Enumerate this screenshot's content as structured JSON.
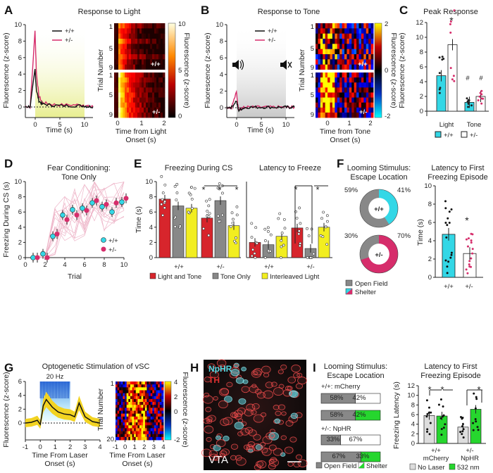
{
  "panels": {
    "A": {
      "label": "A",
      "title": "Response to Light",
      "ylabel": "Fluorescence (z-score)",
      "xlabel": "Time (s)",
      "yticks": [
        "10",
        "8",
        "6",
        "4",
        "2",
        "0"
      ],
      "xticks": [
        "0",
        "5",
        "10"
      ],
      "legend": [
        "+/+",
        "+/-"
      ],
      "heat_ylabel": "Trial Number",
      "heat_yticks": [
        "1",
        "5",
        "9"
      ],
      "heat_xticks": [
        "0",
        "1",
        "2"
      ],
      "heat_xlabel1": "Time from Light",
      "heat_xlabel2": "Onset (s)",
      "geno_top": "+/+",
      "geno_bot": "+/-",
      "cbar_ticks": [
        "10",
        "5",
        "0"
      ],
      "cbar_label": "Fluorescence (z-score)"
    },
    "B": {
      "label": "B",
      "title": "Response to Tone",
      "ylabel": "Fluorescence (z-score)",
      "xlabel": "Time (s)",
      "yticks": [
        "10",
        "8",
        "6",
        "4",
        "2",
        "0"
      ],
      "xticks": [
        "0",
        "5",
        "10"
      ],
      "legend": [
        "+/+",
        "+/-"
      ],
      "heat_ylabel": "Trial Number",
      "heat_yticks": [
        "1",
        "5",
        "9"
      ],
      "heat_xticks": [
        "0",
        "1",
        "2"
      ],
      "heat_xlabel1": "Time from Tone",
      "heat_xlabel2": "Onset (s)",
      "geno_top": "+/+",
      "geno_bot": "+/-",
      "cbar_ticks": [
        "2",
        "0",
        "-2"
      ],
      "cbar_label": "Fluorescence (z-score)"
    },
    "C": {
      "label": "C",
      "title": "Peak Response",
      "ylabel": "Fluorescence (z-score)",
      "yticks": [
        "12",
        "10",
        "8",
        "6",
        "4",
        "2",
        "0"
      ],
      "categories": [
        "Light",
        "Tone"
      ],
      "legend": [
        "+/+",
        "+/-"
      ],
      "star": "*",
      "hash": "#"
    },
    "D": {
      "label": "D",
      "title1": "Fear Conditioning:",
      "title2": "Tone Only",
      "ylabel": "Freezing During CS (s)",
      "xlabel": "Trial",
      "yticks": [
        "10",
        "8",
        "6",
        "4",
        "2",
        "0"
      ],
      "xticks": [
        "0",
        "2",
        "4",
        "6",
        "8",
        "10"
      ],
      "legend": [
        "+/+",
        "+/-"
      ]
    },
    "E": {
      "label": "E",
      "title_left": "Freezing During CS",
      "title_right": "Latency to Freeze",
      "ylabel": "Time (s)",
      "yticks": [
        "10",
        "8",
        "6",
        "4",
        "2",
        "0"
      ],
      "geno": [
        "+/+",
        "+/-"
      ],
      "star": "*",
      "legend": [
        "Light and Tone",
        "Tone Only",
        "Interleaved Light"
      ]
    },
    "F": {
      "label": "F",
      "title1": "Looming Stimulus:",
      "title2": "Escape Location",
      "pie_top": {
        "geno": "+/+",
        "open": "59%",
        "shelter": "41%"
      },
      "pie_bot": {
        "geno": "+/-",
        "open": "30%",
        "shelter": "70%"
      },
      "legend": [
        "Open Field",
        "Shelter"
      ],
      "lat_title1": "Latency to First",
      "lat_title2": "Freezing Episode",
      "ylabel": "Time (s)",
      "yticks": [
        "10",
        "8",
        "6",
        "4",
        "2",
        "0"
      ],
      "geno": [
        "+/+",
        "+/-"
      ],
      "star": "*"
    },
    "G": {
      "label": "G",
      "title": "Optogenetic Stimulation of vSC",
      "ylabel": "Fluorescence (z-score)",
      "yticks": [
        "6",
        "4",
        "2",
        "0"
      ],
      "xticks": [
        "-1",
        "0",
        "1",
        "2",
        "3",
        "4"
      ],
      "xlabel1": "Time From Laser",
      "xlabel2": "Onset (s)",
      "stim": "20 Hz",
      "heat_ylabel": "Trial Number",
      "heat_yticks": [
        "1",
        "20"
      ],
      "heat_xticks": [
        "-1",
        "0",
        "1",
        "2",
        "3",
        "4"
      ],
      "cbar_ticks": [
        "4",
        "2",
        "0",
        "-2"
      ],
      "cbar_label": "Fluorescence (z-score)"
    },
    "H": {
      "label": "H",
      "stain1": "NpHR",
      "stain2": "TH",
      "region": "VTA"
    },
    "I": {
      "label": "I",
      "title1": "Looming Stimulus:",
      "title2": "Escape Location",
      "group1": "+/+: mCherry",
      "group2": "+/-: NpHR",
      "bars": [
        [
          "58%",
          "42%"
        ],
        [
          "58%",
          "42%"
        ],
        [
          "33%",
          "67%"
        ],
        [
          "67%",
          "33%"
        ]
      ],
      "legend": [
        "Open Field",
        "Shelter"
      ],
      "lat_title1": "Latency to First",
      "lat_title2": "Freezing Episode",
      "ylabel": "Freezing Latency (s)",
      "yticks": [
        "12",
        "10",
        "8",
        "6",
        "4",
        "2",
        "0"
      ],
      "geno": [
        [
          "+/+",
          "mCherry"
        ],
        [
          "+/-",
          "NpHR"
        ]
      ],
      "star": "*",
      "legend2": [
        "No Laser",
        "532 nm"
      ]
    }
  },
  "colors": {
    "wt": "#111111",
    "het": "#d62d6b",
    "cyan": "#33d7e6",
    "red": "#d7252c",
    "gray": "#888888",
    "yellow": "#f2ee20",
    "green": "#26d62e",
    "light": "#eef3b4"
  },
  "chart_data": [
    {
      "id": "A-trace",
      "type": "line",
      "title": "Response to Light",
      "xlabel": "Time (s)",
      "ylabel": "Fluorescence (z-score)",
      "ylim": [
        -1,
        10
      ],
      "xlim": [
        -2,
        12
      ],
      "series": [
        {
          "name": "+/+",
          "x": [
            -2,
            -1,
            0,
            0.3,
            0.8,
            1.5,
            3,
            5,
            8,
            10,
            11,
            12
          ],
          "y": [
            0,
            0,
            4.5,
            2,
            0.7,
            0.3,
            0.2,
            0.1,
            0.1,
            0.1,
            0,
            0
          ]
        },
        {
          "name": "+/-",
          "x": [
            -2,
            -1,
            0,
            0.3,
            0.8,
            1.5,
            3,
            5,
            8,
            10,
            11,
            12
          ],
          "y": [
            0,
            0,
            9.2,
            4,
            1.3,
            0.5,
            0.3,
            0.2,
            0.2,
            0.2,
            0,
            0
          ]
        }
      ]
    },
    {
      "id": "B-trace",
      "type": "line",
      "title": "Response to Tone",
      "xlabel": "Time (s)",
      "ylabel": "Fluorescence (z-score)",
      "ylim": [
        -1,
        10
      ],
      "xlim": [
        -2,
        12
      ],
      "series": [
        {
          "name": "+/+",
          "x": [
            -2,
            -1,
            0,
            0.4,
            1,
            2,
            4,
            6,
            8,
            10,
            11,
            12
          ],
          "y": [
            0,
            0,
            0.8,
            -0.4,
            -0.2,
            0,
            0,
            0,
            0,
            0,
            0,
            0
          ]
        },
        {
          "name": "+/-",
          "x": [
            -2,
            -1,
            0,
            0.4,
            1,
            2,
            4,
            6,
            8,
            10,
            11,
            12
          ],
          "y": [
            0,
            0,
            1.8,
            -0.2,
            -0.1,
            0,
            0,
            0,
            0,
            0,
            0,
            0
          ]
        }
      ]
    },
    {
      "id": "C-bar",
      "type": "bar",
      "title": "Peak Response",
      "categories": [
        "Light",
        "Tone"
      ],
      "ylim": [
        0,
        12
      ],
      "series": [
        {
          "name": "+/+",
          "values": [
            4.8,
            1.2
          ]
        },
        {
          "name": "+/-",
          "values": [
            9.0,
            2.0
          ]
        }
      ]
    },
    {
      "id": "D-line",
      "type": "line",
      "title": "Fear Conditioning: Tone Only",
      "xlabel": "Trial",
      "ylabel": "Freezing During CS (s)",
      "ylim": [
        0,
        10
      ],
      "xlim": [
        0,
        10
      ],
      "series": [
        {
          "name": "+/+",
          "x": [
            1,
            2,
            3,
            4,
            5,
            6,
            7,
            8,
            9,
            10
          ],
          "y": [
            0,
            0.5,
            2.8,
            5.6,
            6.3,
            6.5,
            7.2,
            6.7,
            6,
            7.3
          ]
        },
        {
          "name": "+/-",
          "x": [
            1,
            2,
            3,
            4,
            5,
            6,
            7,
            8,
            9,
            10
          ],
          "y": [
            0,
            0,
            3.1,
            5.0,
            5.6,
            6.2,
            7.5,
            7.0,
            7.2,
            7.8
          ]
        }
      ]
    },
    {
      "id": "E-freezing",
      "type": "bar",
      "title": "Freezing During CS",
      "categories": [
        "+/+",
        "+/-"
      ],
      "ylim": [
        0,
        10
      ],
      "series": [
        {
          "name": "Light and Tone",
          "values": [
            7.7,
            5.2
          ]
        },
        {
          "name": "Tone Only",
          "values": [
            6.8,
            7.5
          ]
        },
        {
          "name": "Interleaved Light",
          "values": [
            6.5,
            4.2
          ]
        }
      ]
    },
    {
      "id": "E-latency",
      "type": "bar",
      "title": "Latency to Freeze",
      "categories": [
        "+/+",
        "+/-"
      ],
      "ylim": [
        0,
        10
      ],
      "series": [
        {
          "name": "Light and Tone",
          "values": [
            2.0,
            3.9
          ]
        },
        {
          "name": "Tone Only",
          "values": [
            1.7,
            1.2
          ]
        },
        {
          "name": "Interleaved Light",
          "values": [
            2.8,
            4.0
          ]
        }
      ]
    },
    {
      "id": "F-pie-wt",
      "type": "pie",
      "categories": [
        "Open Field",
        "Shelter"
      ],
      "values": [
        59,
        41
      ]
    },
    {
      "id": "F-pie-het",
      "type": "pie",
      "categories": [
        "Open Field",
        "Shelter"
      ],
      "values": [
        30,
        70
      ]
    },
    {
      "id": "F-latency",
      "type": "bar",
      "title": "Latency to First Freezing Episode",
      "categories": [
        "+/+",
        "+/-"
      ],
      "ylim": [
        0,
        10
      ],
      "values": [
        4.7,
        2.6
      ]
    },
    {
      "id": "G-trace",
      "type": "line",
      "title": "Optogenetic Stimulation of vSC",
      "ylim": [
        -1,
        6
      ],
      "xlim": [
        -1,
        4
      ],
      "series": [
        {
          "name": "mean",
          "x": [
            -1,
            -0.6,
            -0.2,
            0,
            0.2,
            0.4,
            0.8,
            1.2,
            1.6,
            2,
            2.3,
            2.6,
            3,
            3.5,
            4
          ],
          "y": [
            0,
            0.1,
            0.4,
            -0.2,
            2.5,
            3.4,
            2.3,
            1.6,
            1.3,
            1.2,
            0.9,
            2.9,
            0.9,
            0.2,
            0
          ]
        }
      ]
    },
    {
      "id": "I-escape",
      "type": "bar",
      "title": "Looming Stimulus: Escape Location",
      "categories": [
        "mCherry no laser",
        "mCherry 532 nm",
        "NpHR no laser",
        "NpHR 532 nm"
      ],
      "series": [
        {
          "name": "Open Field",
          "values": [
            58,
            58,
            33,
            67
          ]
        },
        {
          "name": "Shelter",
          "values": [
            42,
            42,
            67,
            33
          ]
        }
      ]
    },
    {
      "id": "I-latency",
      "type": "bar",
      "title": "Latency to First Freezing Episode",
      "categories": [
        "+/+ mCherry",
        "+/- NpHR"
      ],
      "ylim": [
        0,
        12
      ],
      "series": [
        {
          "name": "No Laser",
          "values": [
            5.8,
            3.4
          ]
        },
        {
          "name": "532 nm",
          "values": [
            5.7,
            7.1
          ]
        }
      ]
    }
  ]
}
